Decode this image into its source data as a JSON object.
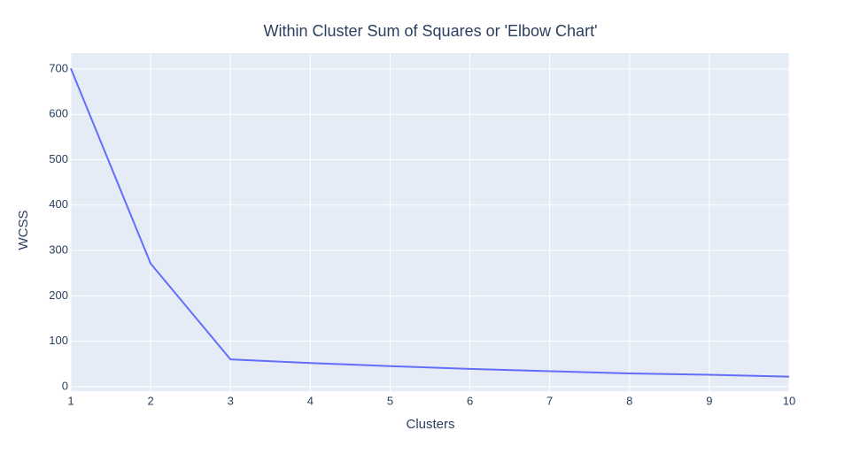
{
  "chart_data": {
    "type": "line",
    "title": "Within Cluster Sum of Squares or 'Elbow Chart'",
    "x_label": "Clusters",
    "y_label": "WCSS",
    "x": [
      1,
      2,
      3,
      4,
      5,
      6,
      7,
      8,
      9,
      10
    ],
    "series": [
      {
        "name": "WCSS",
        "color": "#636efa",
        "values": [
          701,
          271,
          60,
          52,
          45,
          39,
          34,
          29,
          26,
          22
        ]
      }
    ],
    "xlim": [
      1,
      10
    ],
    "xticks": [
      1,
      2,
      3,
      4,
      5,
      6,
      7,
      8,
      9,
      10
    ],
    "ylim": [
      -10,
      735
    ],
    "yticks": [
      0,
      100,
      200,
      300,
      400,
      500,
      600,
      700
    ],
    "grid": true
  }
}
